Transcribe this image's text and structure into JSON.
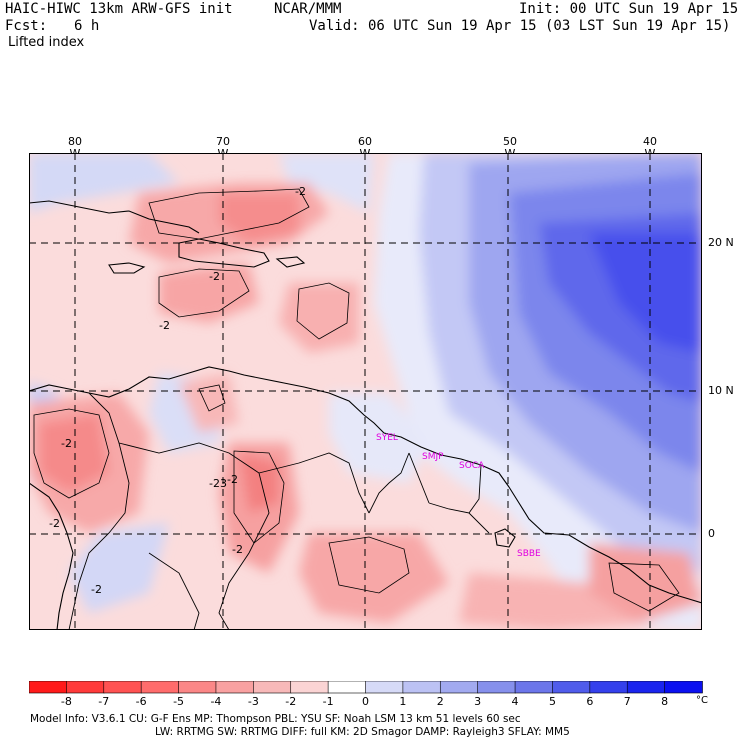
{
  "header": {
    "title_left": "HAIC-HIWC 13km ARW-GFS init",
    "title_center": "NCAR/MMM",
    "init": "Init: 00 UTC Sun 19 Apr 15",
    "fcst_label": "Fcst:",
    "fcst_value": "6 h",
    "valid": "Valid: 06 UTC Sun 19 Apr 15 (03 LST Sun 19 Apr 15)",
    "field": "Lifted index"
  },
  "map": {
    "longitude_labels": [
      "80 W",
      "70 W",
      "60 W",
      "50 W",
      "40 W"
    ],
    "latitude_labels": [
      "20 N",
      "10 N",
      "0"
    ],
    "contour_labels": [
      "-2",
      "-2",
      "-2",
      "-2",
      "-2",
      "-2",
      "-23",
      "-2",
      "-2"
    ],
    "stations": [
      "SYEL",
      "SMJP",
      "SOCA",
      "SBBE"
    ],
    "station_color": "#e000e0"
  },
  "colorbar": {
    "ticks": [
      "-8",
      "-7",
      "-6",
      "-5",
      "-4",
      "-3",
      "-2",
      "-1",
      "0",
      "1",
      "2",
      "3",
      "4",
      "5",
      "6",
      "7",
      "8"
    ],
    "unit": "°C",
    "colors": [
      "#ff1a1a",
      "#ff3a3a",
      "#ff5252",
      "#ff6c6c",
      "#fb8787",
      "#f9a1a1",
      "#f8b9b9",
      "#fbd4d4",
      "#ffffff",
      "#d6daf7",
      "#bcc2f4",
      "#a2aaf0",
      "#8690ec",
      "#6c76ea",
      "#505ceb",
      "#3440ec",
      "#1a24ee",
      "#0b10f0"
    ]
  },
  "footer": {
    "line1": "Model Info: V3.6.1      CU: G-F Ens  MP: Thompson     PBL: YSU       SF: Noah LSM     13 km    51 levels    60 sec",
    "line2": "LW: RRTMG     SW: RRTMG   DIFF: full    KM: 2D Smagor  DAMP: Rayleigh3   SFLAY: MM5"
  }
}
